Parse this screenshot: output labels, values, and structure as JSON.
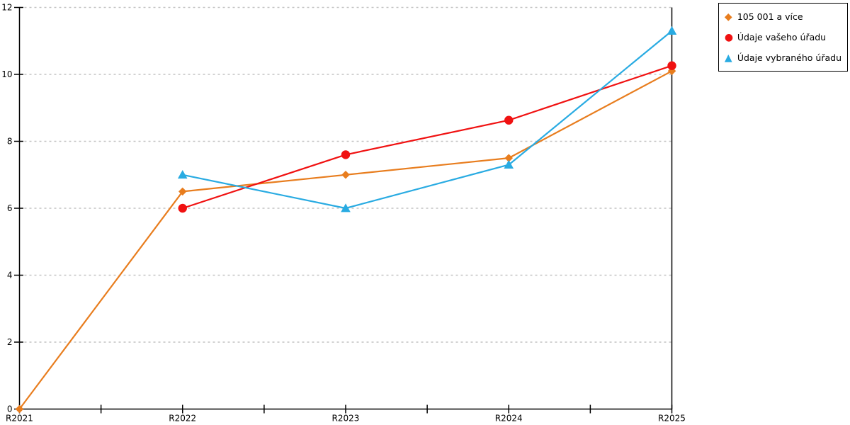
{
  "chart_data": {
    "type": "line",
    "title": "",
    "xlabel": "",
    "ylabel": "",
    "categories": [
      "R2021",
      "R2022",
      "R2023",
      "R2024",
      "R2025"
    ],
    "ylim": [
      0,
      12
    ],
    "yticks": [
      0,
      2,
      4,
      6,
      8,
      10,
      12
    ],
    "grid": true,
    "grid_style": "dotted",
    "legend_position": "top-right",
    "series": [
      {
        "name": "105 001 a více",
        "color": "#e87d1e",
        "marker": "diamond",
        "values": [
          0,
          6.5,
          7.0,
          7.5,
          10.1
        ]
      },
      {
        "name": "Údaje vašeho úřadu",
        "color": "#f01111",
        "marker": "circle",
        "values": [
          null,
          6.0,
          7.6,
          8.63,
          10.26
        ]
      },
      {
        "name": "Údaje vybraného úřadu",
        "color": "#29abe2",
        "marker": "triangle",
        "values": [
          null,
          7.0,
          6.0,
          7.3,
          11.3
        ]
      }
    ],
    "colors": {
      "axis": "#000000",
      "grid": "#c3c3c3",
      "text": "#000000"
    }
  }
}
